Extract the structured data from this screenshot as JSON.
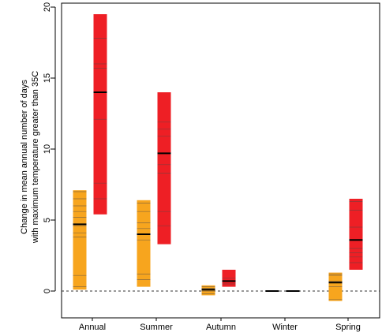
{
  "chart_data": {
    "type": "bar",
    "ylabel": [
      "Change in mean annual number of days",
      "with maximum temperature greater than 35C"
    ],
    "ylim": [
      -1.5,
      20
    ],
    "yticks": [
      "0",
      "5",
      "10",
      "15",
      "20"
    ],
    "ytick_values": [
      0,
      5,
      10,
      15,
      20
    ],
    "categories": [
      "Annual",
      "Summer",
      "Autumn",
      "Winter",
      "Spring"
    ],
    "series": [
      {
        "color": "#f7a51e",
        "ranges": [
          [
            0.1,
            7.1
          ],
          [
            0.3,
            6.4
          ],
          [
            -0.3,
            0.4
          ],
          [
            0,
            0
          ],
          [
            -0.7,
            1.3
          ]
        ],
        "medians": [
          4.7,
          4.0,
          0.1,
          0,
          0.6
        ],
        "lines": [
          [
            0.3,
            1.1,
            3.8,
            4.1,
            4.6,
            5.2,
            5.6,
            6.0,
            6.5,
            7.0
          ],
          [
            0.8,
            1.2,
            3.6,
            4.4,
            4.8,
            5.6,
            6.2
          ],
          [
            -0.2,
            0.0,
            0.2,
            0.3
          ],
          [],
          [
            -0.6,
            0.3,
            0.7,
            1.1,
            1.2
          ]
        ]
      },
      {
        "color": "#ee1f25",
        "ranges": [
          [
            5.4,
            19.5
          ],
          [
            3.3,
            14.0
          ],
          [
            0.3,
            1.5
          ],
          [
            0,
            0
          ],
          [
            1.5,
            6.5
          ]
        ],
        "medians": [
          14.0,
          9.7,
          0.7,
          0,
          3.6
        ],
        "lines": [
          [
            6.5,
            7.6,
            12.1,
            15.7,
            16.0,
            17.8
          ],
          [
            4.6,
            5.6,
            8.3,
            8.9,
            10.9,
            11.4,
            11.9
          ],
          [
            0.5,
            0.9
          ],
          [],
          [
            2.0,
            2.4,
            2.7,
            3.0,
            4.5,
            5.7,
            6.3
          ]
        ]
      }
    ],
    "reference_line": 0
  }
}
